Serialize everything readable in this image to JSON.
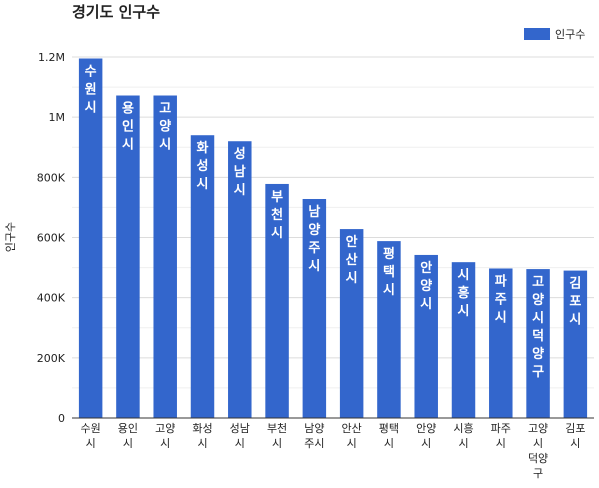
{
  "chart_data": {
    "type": "bar",
    "title": "경기도 인구수",
    "xlabel": "",
    "ylabel": "인구수",
    "legend": {
      "position": "top-right",
      "label": "인구수"
    },
    "colors": {
      "bar": "#3366cc",
      "grid": "#e6e6e6",
      "axis": "#333333",
      "text": "#222222",
      "label_text": "#ffffff"
    },
    "ylim": [
      0,
      1200000
    ],
    "yticks": [
      {
        "value": 0,
        "label": "0"
      },
      {
        "value": 200000,
        "label": "200K"
      },
      {
        "value": 400000,
        "label": "400K"
      },
      {
        "value": 600000,
        "label": "600K"
      },
      {
        "value": 800000,
        "label": "800K"
      },
      {
        "value": 1000000,
        "label": "1M"
      },
      {
        "value": 1200000,
        "label": "1.2M"
      }
    ],
    "categories": [
      "수원시",
      "용인시",
      "고양시",
      "화성시",
      "성남시",
      "부천시",
      "남양주시",
      "안산시",
      "평택시",
      "안양시",
      "시흥시",
      "파주시",
      "고양시덕양구",
      "김포시"
    ],
    "category_lines": [
      [
        "수원",
        "시"
      ],
      [
        "용인",
        "시"
      ],
      [
        "고양",
        "시"
      ],
      [
        "화성",
        "시"
      ],
      [
        "성남",
        "시"
      ],
      [
        "부천",
        "시"
      ],
      [
        "남양",
        "주시"
      ],
      [
        "안산",
        "시"
      ],
      [
        "평택",
        "시"
      ],
      [
        "안양",
        "시"
      ],
      [
        "시흥",
        "시"
      ],
      [
        "파주",
        "시"
      ],
      [
        "고양",
        "시",
        "덕양",
        "구"
      ],
      [
        "김포",
        "시"
      ]
    ],
    "series": [
      {
        "name": "인구수",
        "values": [
          1195000,
          1072000,
          1072000,
          940000,
          920000,
          778000,
          728000,
          628000,
          588000,
          542000,
          518000,
          497000,
          495000,
          490000
        ]
      }
    ]
  }
}
